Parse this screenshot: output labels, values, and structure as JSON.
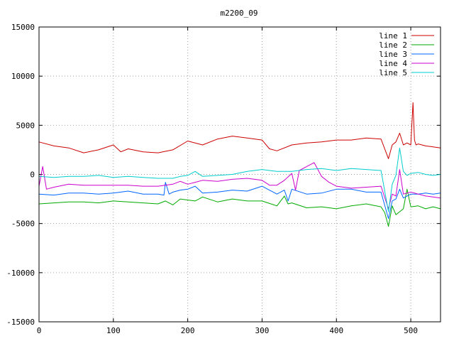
{
  "chart_data": {
    "type": "line",
    "title": "m2200_09",
    "xlabel": "",
    "ylabel": "",
    "xlim": [
      0,
      540
    ],
    "ylim": [
      -15000,
      15000
    ],
    "xticks": [
      0,
      100,
      200,
      300,
      400,
      500
    ],
    "yticks": [
      -15000,
      -10000,
      -5000,
      0,
      5000,
      10000,
      15000
    ],
    "grid": true,
    "legend_position": "top-right",
    "series": [
      {
        "name": "line 1",
        "color": "#cc0000",
        "x": [
          0,
          20,
          40,
          60,
          80,
          100,
          110,
          120,
          140,
          160,
          180,
          200,
          220,
          240,
          260,
          280,
          300,
          310,
          320,
          340,
          360,
          380,
          400,
          420,
          440,
          460,
          470,
          475,
          480,
          485,
          490,
          495,
          500,
          503,
          505,
          507,
          510,
          520,
          530,
          540
        ],
        "values": [
          3300,
          2900,
          2700,
          2200,
          2500,
          3000,
          2300,
          2600,
          2300,
          2200,
          2500,
          3400,
          3000,
          3600,
          3900,
          3700,
          3500,
          2600,
          2400,
          3000,
          3200,
          3300,
          3500,
          3500,
          3700,
          3600,
          1600,
          3000,
          3300,
          4200,
          3000,
          3200,
          3000,
          7300,
          3500,
          3000,
          3100,
          2900,
          2800,
          2700
        ]
      },
      {
        "name": "line 2",
        "color": "#00aa00",
        "x": [
          0,
          20,
          40,
          60,
          80,
          100,
          120,
          140,
          160,
          170,
          180,
          190,
          200,
          210,
          220,
          240,
          260,
          280,
          300,
          320,
          330,
          335,
          340,
          360,
          380,
          400,
          420,
          440,
          460,
          465,
          470,
          475,
          480,
          485,
          490,
          495,
          500,
          510,
          520,
          530,
          540
        ],
        "values": [
          -3000,
          -2900,
          -2800,
          -2800,
          -2900,
          -2700,
          -2800,
          -2900,
          -3000,
          -2700,
          -3100,
          -2500,
          -2600,
          -2700,
          -2300,
          -2800,
          -2500,
          -2700,
          -2700,
          -3200,
          -2200,
          -3000,
          -2900,
          -3400,
          -3300,
          -3500,
          -3200,
          -3000,
          -3300,
          -3900,
          -5300,
          -3200,
          -4100,
          -3800,
          -3500,
          -1500,
          -3300,
          -3200,
          -3500,
          -3300,
          -3500
        ]
      },
      {
        "name": "line 3",
        "color": "#0066ff",
        "x": [
          0,
          20,
          40,
          60,
          80,
          100,
          120,
          140,
          160,
          168,
          170,
          175,
          180,
          190,
          200,
          210,
          220,
          240,
          260,
          280,
          300,
          320,
          330,
          335,
          340,
          360,
          380,
          400,
          420,
          440,
          460,
          470,
          475,
          480,
          485,
          490,
          500,
          510,
          520,
          530,
          540
        ],
        "values": [
          -2000,
          -2100,
          -1900,
          -1900,
          -2000,
          -1900,
          -1700,
          -2000,
          -2000,
          -2100,
          -800,
          -2000,
          -1800,
          -1600,
          -1500,
          -1200,
          -1900,
          -1800,
          -1600,
          -1700,
          -1200,
          -2000,
          -1600,
          -2700,
          -1500,
          -2000,
          -1900,
          -1500,
          -1500,
          -1800,
          -1800,
          -4500,
          -2700,
          -2500,
          -1500,
          -2400,
          -2000,
          -2000,
          -1900,
          -2000,
          -1900
        ]
      },
      {
        "name": "line 4",
        "color": "#cc00cc",
        "x": [
          0,
          5,
          10,
          20,
          40,
          60,
          80,
          100,
          120,
          140,
          160,
          180,
          190,
          200,
          210,
          220,
          240,
          260,
          280,
          300,
          310,
          320,
          330,
          340,
          345,
          350,
          360,
          370,
          380,
          390,
          400,
          420,
          440,
          460,
          470,
          475,
          480,
          485,
          490,
          500,
          510,
          520,
          530,
          540
        ],
        "values": [
          -1200,
          800,
          -1500,
          -1300,
          -1000,
          -1100,
          -1100,
          -1100,
          -1100,
          -1200,
          -1200,
          -1000,
          -700,
          -1000,
          -800,
          -600,
          -700,
          -500,
          -400,
          -600,
          -1100,
          -1100,
          -600,
          100,
          -1600,
          400,
          800,
          1200,
          -200,
          -800,
          -1200,
          -1400,
          -1300,
          -1200,
          -3500,
          -2000,
          -2200,
          500,
          -2000,
          -1800,
          -2000,
          -2200,
          -2300,
          -2400
        ]
      },
      {
        "name": "line 5",
        "color": "#00cccc",
        "x": [
          0,
          20,
          40,
          60,
          80,
          100,
          120,
          140,
          160,
          180,
          190,
          200,
          210,
          220,
          240,
          260,
          280,
          300,
          320,
          340,
          360,
          380,
          400,
          420,
          440,
          460,
          470,
          475,
          480,
          485,
          490,
          495,
          500,
          510,
          520,
          530,
          540
        ],
        "values": [
          -200,
          -300,
          -200,
          -200,
          -100,
          -300,
          -200,
          -300,
          -400,
          -400,
          -200,
          -100,
          300,
          -200,
          -100,
          0,
          300,
          500,
          300,
          300,
          500,
          600,
          400,
          600,
          500,
          400,
          -3800,
          -1000,
          -100,
          2700,
          300,
          -100,
          100,
          200,
          0,
          -100,
          0
        ]
      }
    ]
  }
}
